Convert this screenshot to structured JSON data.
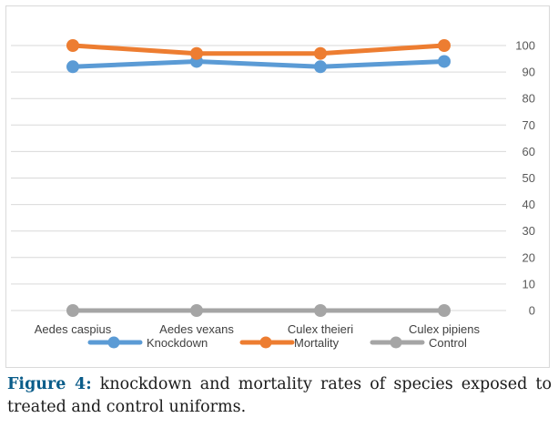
{
  "chart_data": {
    "type": "line",
    "categories": [
      "Aedes caspius",
      "Aedes vexans",
      "Culex theieri",
      "Culex pipiens"
    ],
    "series": [
      {
        "name": "Knockdown",
        "values": [
          92,
          94,
          92,
          94
        ],
        "color": "#5b9bd5"
      },
      {
        "name": "Mortality",
        "values": [
          100,
          97,
          97,
          100
        ],
        "color": "#ed7d31"
      },
      {
        "name": "Control",
        "values": [
          0,
          0,
          0,
          0
        ],
        "color": "#a5a5a5"
      }
    ],
    "y_ticks": [
      "0",
      "10",
      "20",
      "30",
      "40",
      "50",
      "60",
      "70",
      "80",
      "90",
      "100"
    ],
    "ylim": [
      0,
      100
    ],
    "y_axis_side": "right",
    "grid": true,
    "legend_position": "bottom",
    "title": "",
    "xlabel": "",
    "ylabel": ""
  },
  "caption": {
    "label": "Figure 4:",
    "text": " knockdown and mortality rates of species exposed to treated and control uniforms."
  }
}
